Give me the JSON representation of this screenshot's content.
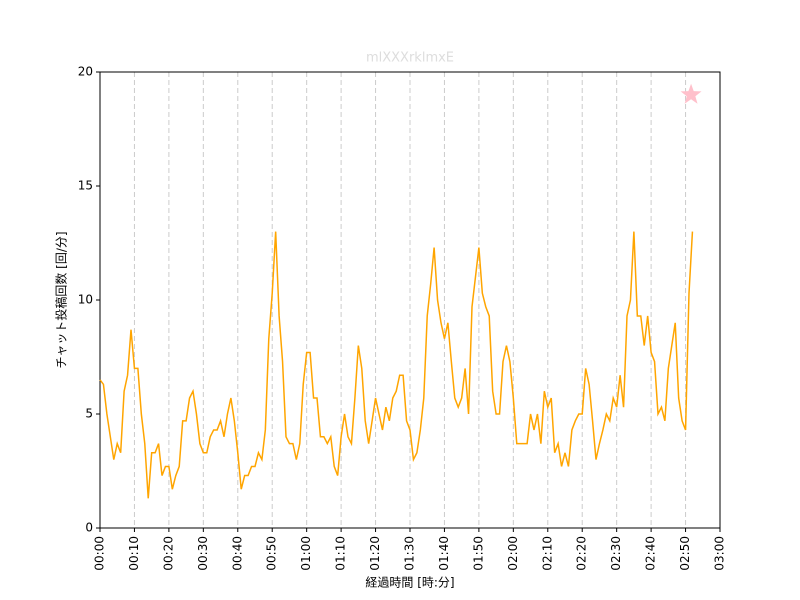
{
  "chart_data": {
    "type": "line",
    "title": "mlXXXrklmxE",
    "xlabel": "経過時間 [時:分]",
    "ylabel": "チャット投稿回数 [回/分]",
    "color": "orange",
    "x": [
      0,
      1,
      2,
      3,
      4,
      5,
      6,
      7,
      8,
      9,
      10,
      11,
      12,
      13,
      14,
      15,
      16,
      17,
      18,
      19,
      20,
      21,
      22,
      23,
      24,
      25,
      26,
      27,
      28,
      29,
      30,
      31,
      32,
      33,
      34,
      35,
      36,
      37,
      38,
      39,
      40,
      41,
      42,
      43,
      44,
      45,
      46,
      47,
      48,
      49,
      50,
      51,
      52,
      53,
      54,
      55,
      56,
      57,
      58,
      59,
      60,
      61,
      62,
      63,
      64,
      65,
      66,
      67,
      68,
      69,
      70,
      71,
      72,
      73,
      74,
      75,
      76,
      77,
      78,
      79,
      80,
      81,
      82,
      83,
      84,
      85,
      86,
      87,
      88,
      89,
      90,
      91,
      92,
      93,
      94,
      95,
      96,
      97,
      98,
      99,
      100,
      101,
      102,
      103,
      104,
      105,
      106,
      107,
      108,
      109,
      110,
      111,
      112,
      113,
      114,
      115,
      116,
      117,
      118,
      119,
      120,
      121,
      122,
      123,
      124,
      125,
      126,
      127,
      128,
      129,
      130,
      131,
      132,
      133,
      134,
      135,
      136,
      137,
      138,
      139,
      140,
      141,
      142,
      143,
      144,
      145,
      146,
      147,
      148,
      149,
      150,
      151,
      152,
      153,
      154,
      155,
      156,
      157,
      158,
      159,
      160,
      161,
      162,
      163,
      164,
      165,
      166,
      167,
      168,
      169,
      170,
      171,
      172
    ],
    "values": [
      6.5,
      6.3,
      5,
      4,
      3,
      3.7,
      3.3,
      6,
      6.7,
      8.7,
      7,
      7,
      5,
      3.7,
      1.3,
      3.3,
      3.3,
      3.7,
      2.3,
      2.7,
      2.7,
      1.7,
      2.3,
      2.7,
      4.7,
      4.7,
      5.7,
      6,
      5,
      3.7,
      3.3,
      3.3,
      4,
      4.3,
      4.3,
      4.7,
      4,
      5,
      5.7,
      4.7,
      3.3,
      1.7,
      2.3,
      2.3,
      2.7,
      2.7,
      3.3,
      3,
      4.3,
      8.3,
      10.3,
      13,
      9.3,
      7.3,
      4,
      3.7,
      3.7,
      3,
      3.7,
      6.3,
      7.7,
      7.7,
      5.7,
      5.7,
      4,
      4,
      3.7,
      4,
      2.7,
      2.3,
      4,
      5,
      4,
      3.7,
      5.7,
      8,
      7,
      4.7,
      3.7,
      4.7,
      5.7,
      5,
      4.3,
      5.3,
      4.7,
      5.7,
      6,
      6.7,
      6.7,
      4.7,
      4.3,
      3,
      3.3,
      4.3,
      5.7,
      9.3,
      10.7,
      12.3,
      10,
      9,
      8.3,
      9,
      7.3,
      5.7,
      5.3,
      5.7,
      7,
      5,
      9.7,
      11,
      12.3,
      10.3,
      9.7,
      9.3,
      6,
      5,
      5,
      7.3,
      8,
      7.3,
      5.7,
      3.7,
      3.7,
      3.7,
      3.7,
      5,
      4.3,
      5,
      3.7,
      6,
      5.3,
      5.7,
      3.3,
      3.7,
      2.7,
      3.3,
      2.7,
      4.3,
      4.7,
      5,
      5,
      7,
      6.3,
      4.7,
      3,
      3.7,
      4.3,
      5,
      4.7,
      5.7,
      5.3,
      6.7,
      5.3,
      9.3,
      10,
      13,
      9.3,
      9.3,
      8,
      9.3,
      7.7,
      7.3,
      5,
      5.3,
      4.7,
      7,
      8,
      9,
      5.7,
      4.7,
      4.3,
      10.3,
      13
    ],
    "marker": {
      "x": 171.6,
      "y": 19,
      "color": "pink"
    },
    "xlim": [
      0,
      180
    ],
    "ylim": [
      0,
      20
    ],
    "yticks": [
      0,
      5,
      10,
      15,
      20
    ],
    "xticks": [
      {
        "value": 0,
        "label": "00:00"
      },
      {
        "value": 10,
        "label": "00:10"
      },
      {
        "value": 20,
        "label": "00:20"
      },
      {
        "value": 30,
        "label": "00:30"
      },
      {
        "value": 40,
        "label": "00:40"
      },
      {
        "value": 50,
        "label": "00:50"
      },
      {
        "value": 60,
        "label": "01:00"
      },
      {
        "value": 70,
        "label": "01:10"
      },
      {
        "value": 80,
        "label": "01:20"
      },
      {
        "value": 90,
        "label": "01:30"
      },
      {
        "value": 100,
        "label": "01:40"
      },
      {
        "value": 110,
        "label": "01:50"
      },
      {
        "value": 120,
        "label": "02:00"
      },
      {
        "value": 130,
        "label": "02:10"
      },
      {
        "value": 140,
        "label": "02:20"
      },
      {
        "value": 150,
        "label": "02:30"
      },
      {
        "value": 160,
        "label": "02:40"
      },
      {
        "value": 170,
        "label": "02:50"
      },
      {
        "value": 180,
        "label": "03:00"
      }
    ],
    "xgrid": true
  }
}
